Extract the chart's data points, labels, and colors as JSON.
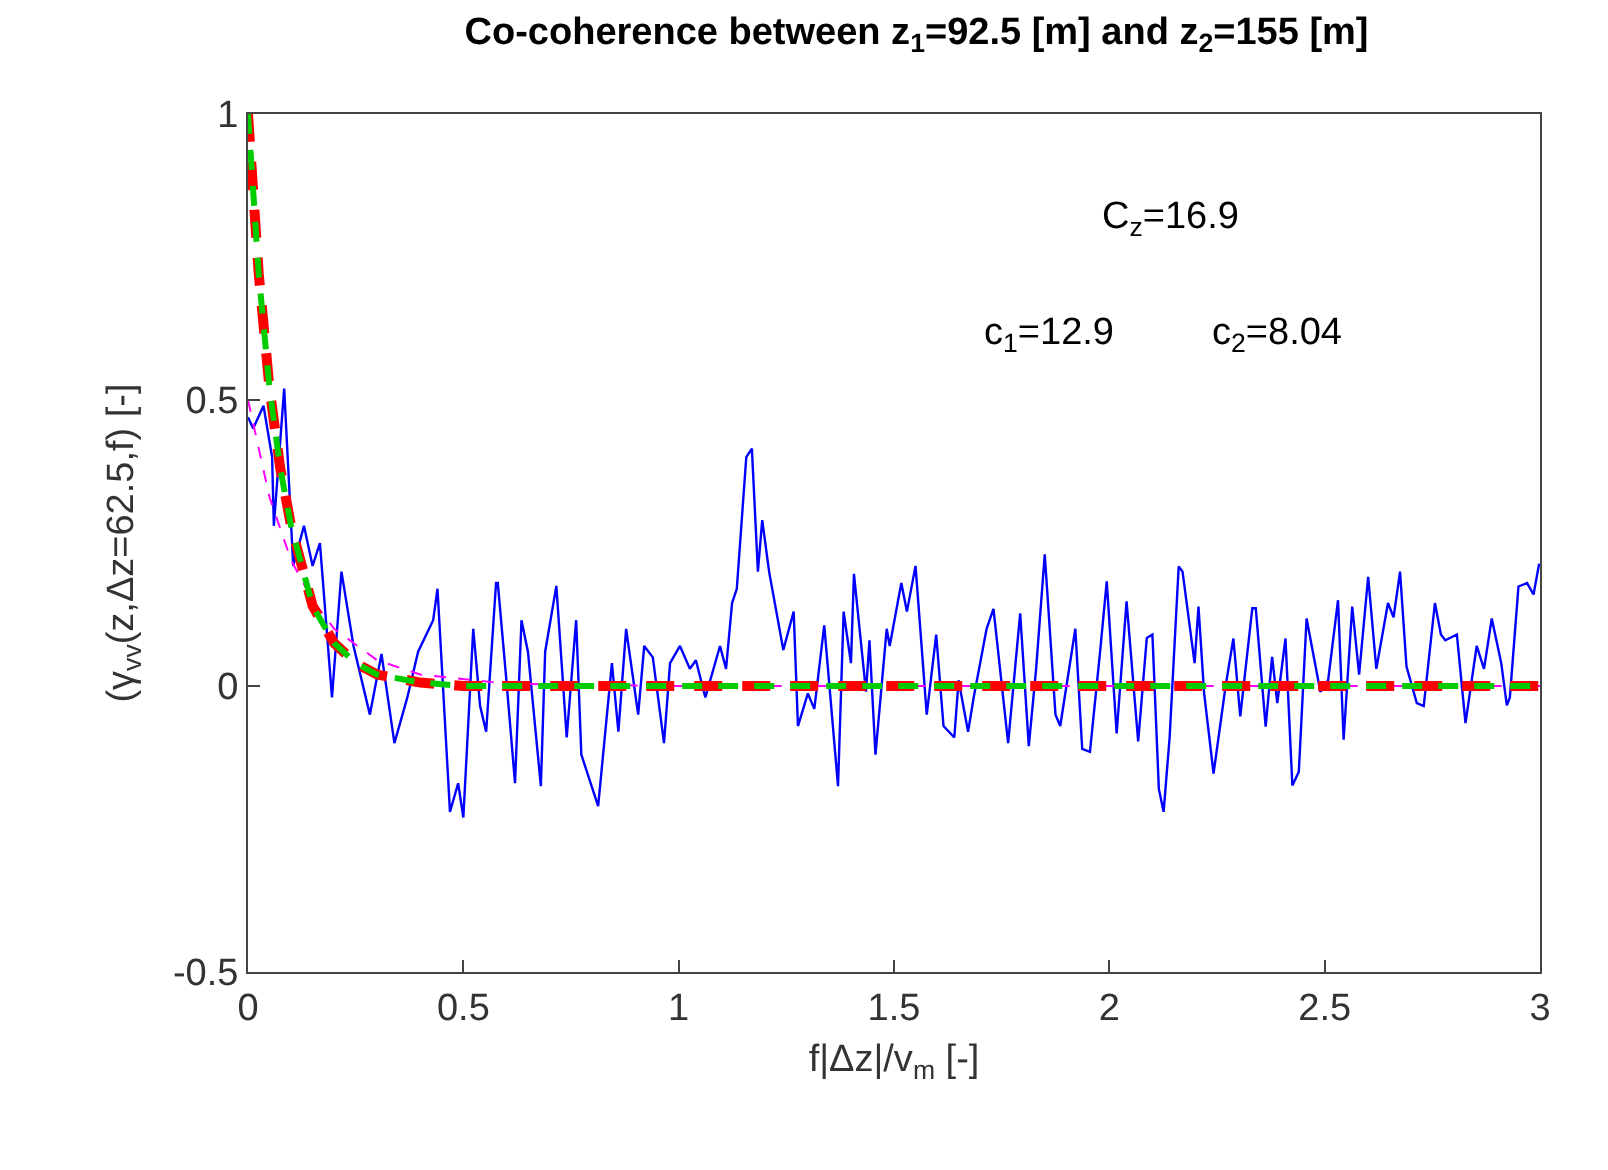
{
  "chart_data": {
    "type": "line",
    "title": "Co-coherence between z$_{1}$=92.5 [m] and z$_{2}$=155 [m]",
    "xlabel": "f|Δz|/v$_{m}$ [-]",
    "ylabel": "(γ$_{vv}$(z,Δz=62.5,f) [-]",
    "xlim": [
      0,
      3
    ],
    "xticks": [
      0,
      0.5,
      1,
      1.5,
      2,
      2.5,
      3
    ],
    "ylim": [
      -0.5,
      1
    ],
    "yticks": [
      -0.5,
      0,
      0.5,
      1
    ],
    "marker": "none",
    "annotations": [
      "C$_{z}$=16.9",
      "c$_{1}$=12.9",
      "c$_{2}$=8.04"
    ],
    "series": [
      {
        "color": "#0000ff",
        "line_style": "solid",
        "x": [
          0,
          0.012,
          0.036,
          0.056,
          0.06,
          0.084,
          0.105,
          0.13,
          0.15,
          0.167,
          0.195,
          0.217,
          0.245,
          0.283,
          0.31,
          0.34,
          0.37,
          0.395,
          0.43,
          0.44,
          0.469,
          0.488,
          0.5,
          0.523,
          0.539,
          0.553,
          0.576,
          0.58,
          0.6,
          0.62,
          0.635,
          0.65,
          0.68,
          0.69,
          0.716,
          0.74,
          0.762,
          0.774,
          0.813,
          0.845,
          0.86,
          0.878,
          0.906,
          0.92,
          0.94,
          0.966,
          0.98,
          1.003,
          1.026,
          1.04,
          1.062,
          1.096,
          1.11,
          1.124,
          1.135,
          1.157,
          1.17,
          1.184,
          1.194,
          1.21,
          1.243,
          1.267,
          1.277,
          1.3,
          1.315,
          1.338,
          1.37,
          1.383,
          1.4,
          1.407,
          1.435,
          1.443,
          1.457,
          1.483,
          1.49,
          1.517,
          1.53,
          1.55,
          1.576,
          1.598,
          1.615,
          1.64,
          1.65,
          1.672,
          1.685,
          1.715,
          1.731,
          1.765,
          1.793,
          1.813,
          1.83,
          1.85,
          1.875,
          1.886,
          1.921,
          1.937,
          1.955,
          1.979,
          1.994,
          2.017,
          2.04,
          2.067,
          2.087,
          2.1,
          2.115,
          2.126,
          2.14,
          2.161,
          2.17,
          2.198,
          2.207,
          2.22,
          2.242,
          2.27,
          2.288,
          2.304,
          2.332,
          2.34,
          2.363,
          2.378,
          2.39,
          2.409,
          2.425,
          2.44,
          2.458,
          2.49,
          2.508,
          2.531,
          2.544,
          2.564,
          2.58,
          2.601,
          2.62,
          2.647,
          2.66,
          2.675,
          2.69,
          2.714,
          2.73,
          2.756,
          2.77,
          2.78,
          2.807,
          2.827,
          2.853,
          2.87,
          2.888,
          2.91,
          2.923,
          2.93,
          2.95,
          2.97,
          2.985,
          2.998
        ],
        "values": [
          0.47,
          0.45,
          0.49,
          0.4,
          0.28,
          0.52,
          0.21,
          0.28,
          0.21,
          0.25,
          -0.02,
          0.2,
          0.07,
          -0.05,
          0.056,
          -0.1,
          -0.02,
          0.06,
          0.115,
          0.17,
          -0.22,
          -0.17,
          -0.23,
          0.1,
          -0.035,
          -0.08,
          0.18,
          0.18,
          0.01,
          -0.17,
          0.115,
          0.06,
          -0.175,
          0.06,
          0.175,
          -0.09,
          0.115,
          -0.12,
          -0.21,
          0.04,
          -0.08,
          0.1,
          -0.05,
          0.07,
          0.05,
          -0.1,
          0.04,
          0.07,
          0.03,
          0.045,
          -0.02,
          0.07,
          0.03,
          0.145,
          0.17,
          0.4,
          0.415,
          0.2,
          0.29,
          0.2,
          0.063,
          0.13,
          -0.07,
          -0.013,
          -0.04,
          0.106,
          -0.175,
          0.13,
          0.04,
          0.196,
          -0.01,
          0.08,
          -0.12,
          0.1,
          0.07,
          0.18,
          0.13,
          0.21,
          -0.05,
          0.09,
          -0.07,
          -0.09,
          0.01,
          -0.08,
          -0.02,
          0.1,
          0.135,
          -0.1,
          0.127,
          -0.105,
          0.03,
          0.23,
          -0.05,
          -0.07,
          0.1,
          -0.11,
          -0.115,
          0.063,
          0.183,
          -0.083,
          0.148,
          -0.097,
          0.084,
          0.09,
          -0.18,
          -0.22,
          -0.09,
          0.209,
          0.2,
          0.04,
          0.139,
          -0.012,
          -0.153,
          0,
          0.083,
          -0.053,
          0.136,
          0.136,
          -0.071,
          0.051,
          -0.03,
          0.083,
          -0.174,
          -0.15,
          0.118,
          -0.01,
          0.01,
          0.15,
          -0.094,
          0.139,
          0.02,
          0.191,
          0.03,
          0.145,
          0.12,
          0.2,
          0.034,
          -0.03,
          -0.035,
          0.145,
          0.09,
          0.08,
          0.09,
          -0.065,
          0.07,
          0.03,
          0.118,
          0.04,
          -0.034,
          -0.02,
          0.174,
          0.18,
          0.16,
          0.214
        ]
      },
      {
        "color": "#ff00ff",
        "line_style": "dashed",
        "x": [
          0,
          0.05,
          0.1,
          0.15,
          0.2,
          0.3,
          0.4,
          0.6,
          1,
          3
        ],
        "values": [
          0.5,
          0.33,
          0.22,
          0.15,
          0.1,
          0.045,
          0.02,
          0.004,
          0,
          0
        ]
      },
      {
        "color": "#ff0000",
        "line_style": "dashed",
        "x": [
          0,
          0.025,
          0.05,
          0.075,
          0.1,
          0.15,
          0.2,
          0.25,
          0.3,
          0.4,
          0.5,
          3
        ],
        "values": [
          1,
          0.72,
          0.52,
          0.38,
          0.28,
          0.14,
          0.075,
          0.04,
          0.02,
          0.006,
          0,
          0
        ]
      },
      {
        "color": "#00cc00",
        "line_style": "dashed",
        "x": [
          0,
          0.025,
          0.05,
          0.075,
          0.1,
          0.15,
          0.2,
          0.25,
          0.3,
          0.4,
          0.5,
          3
        ],
        "values": [
          1,
          0.72,
          0.52,
          0.38,
          0.28,
          0.14,
          0.075,
          0.04,
          0.02,
          0.006,
          0,
          0
        ]
      }
    ]
  }
}
